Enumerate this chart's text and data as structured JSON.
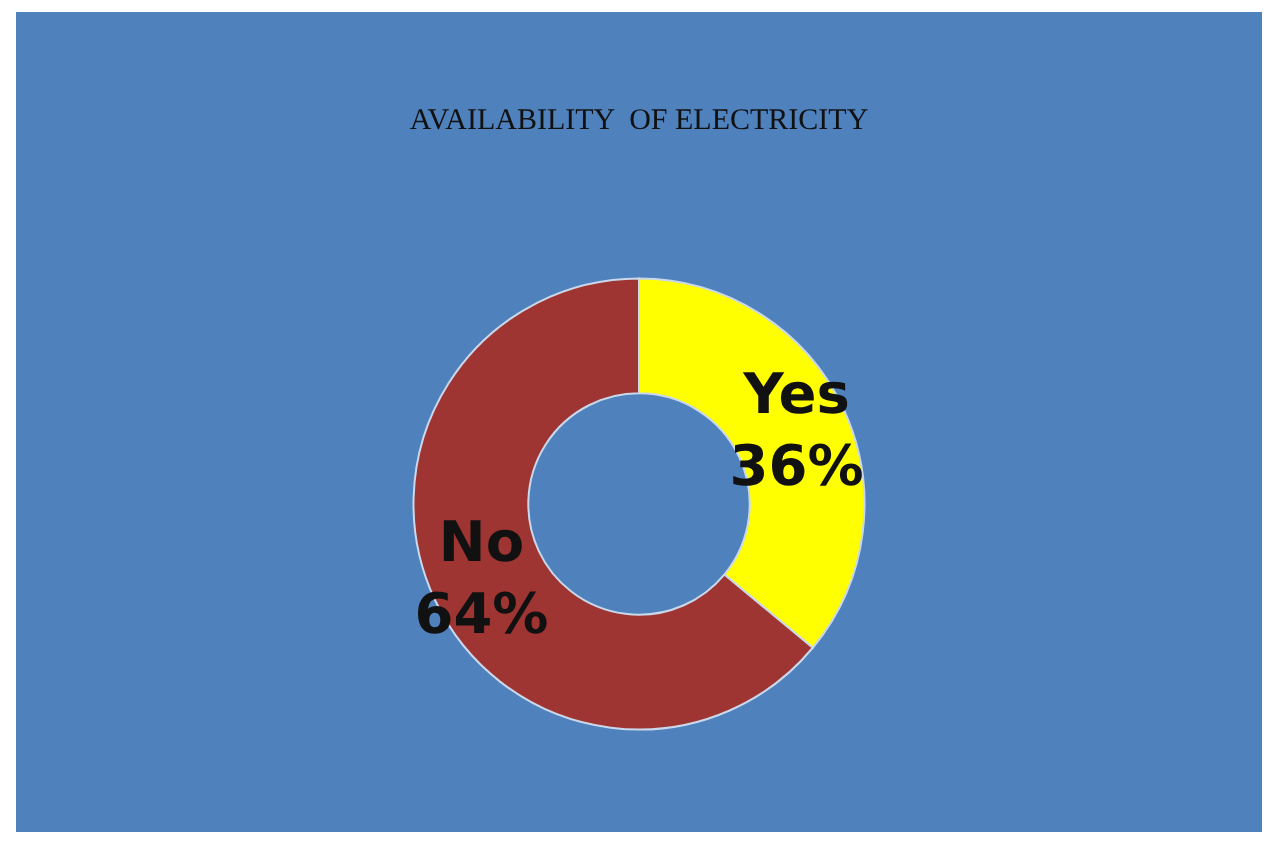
{
  "chart_data": {
    "type": "donut",
    "title": "AVAILABILITY  OF ELECTRICITY",
    "categories": [
      "Yes",
      "No"
    ],
    "values": [
      36,
      64
    ],
    "colors": [
      "#ffff00",
      "#9e3532"
    ],
    "value_labels": [
      "36%",
      "64%"
    ],
    "legend": false
  }
}
